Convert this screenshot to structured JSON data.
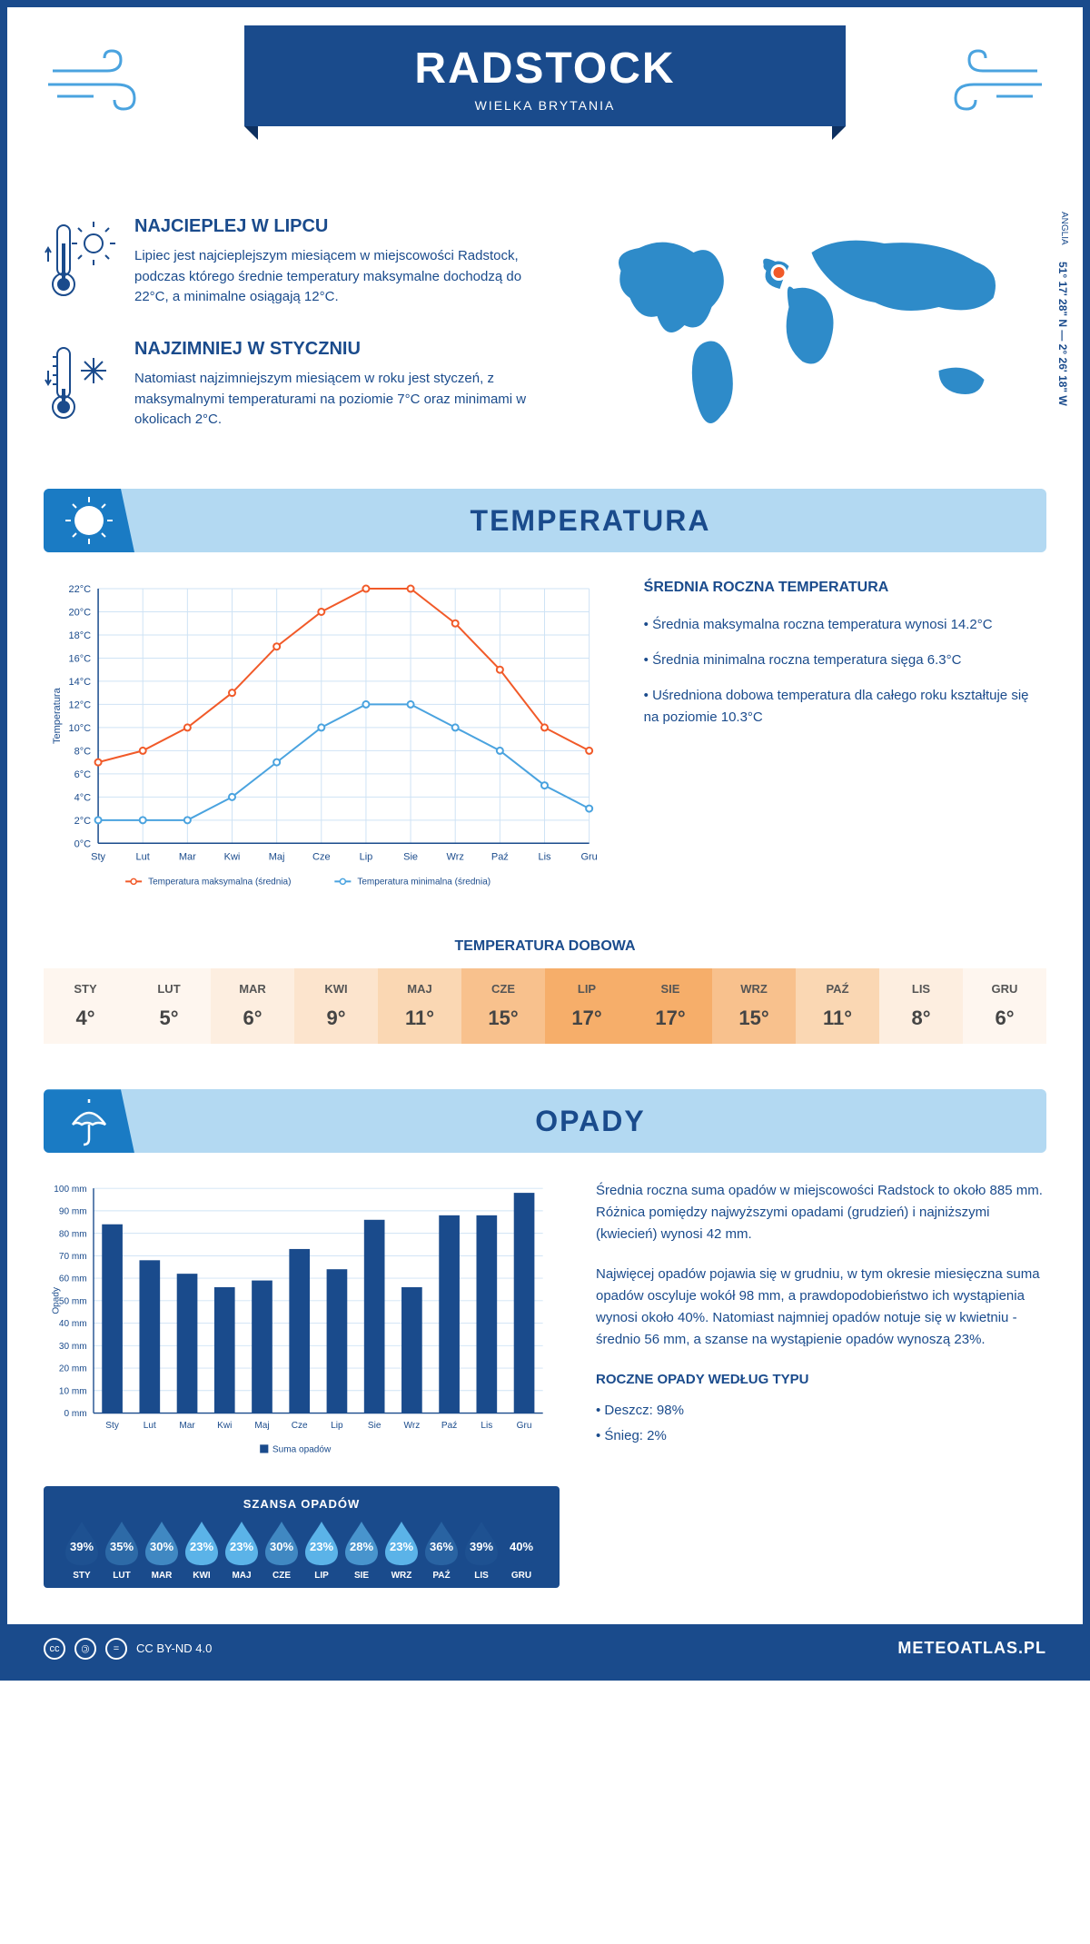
{
  "header": {
    "city": "RADSTOCK",
    "country": "WIELKA BRYTANIA",
    "coords": "51° 17' 28\" N — 2° 26' 18\" W",
    "region": "ANGLIA"
  },
  "info": {
    "warm": {
      "title": "NAJCIEPLEJ W LIPCU",
      "text": "Lipiec jest najcieplejszym miesiącem w miejscowości Radstock, podczas którego średnie temperatury maksymalne dochodzą do 22°C, a minimalne osiągają 12°C."
    },
    "cold": {
      "title": "NAJZIMNIEJ W STYCZNIU",
      "text": "Natomiast najzimniejszym miesiącem w roku jest styczeń, z maksymalnymi temperaturami na poziomie 7°C oraz minimami w okolicach 2°C."
    }
  },
  "sections": {
    "temp": "TEMPERATURA",
    "precip": "OPADY"
  },
  "months_short": [
    "Sty",
    "Lut",
    "Mar",
    "Kwi",
    "Maj",
    "Cze",
    "Lip",
    "Sie",
    "Wrz",
    "Paź",
    "Lis",
    "Gru"
  ],
  "months_upper": [
    "STY",
    "LUT",
    "MAR",
    "KWI",
    "MAJ",
    "CZE",
    "LIP",
    "SIE",
    "WRZ",
    "PAŹ",
    "LIS",
    "GRU"
  ],
  "temp_chart": {
    "type": "line",
    "ylabel": "Temperatura",
    "ylim": [
      0,
      22
    ],
    "ytick_step": 2,
    "max": [
      7,
      8,
      10,
      13,
      17,
      20,
      22,
      22,
      19,
      15,
      10,
      8
    ],
    "min": [
      2,
      2,
      2,
      4,
      7,
      10,
      12,
      12,
      10,
      8,
      5,
      3
    ],
    "max_color": "#f15a29",
    "min_color": "#4aa3df",
    "grid_color": "#cfe3f5",
    "legend": {
      "max": "Temperatura maksymalna (średnia)",
      "min": "Temperatura minimalna (średnia)"
    }
  },
  "temp_stats": {
    "title": "ŚREDNIA ROCZNA TEMPERATURA",
    "l1": "• Średnia maksymalna roczna temperatura wynosi 14.2°C",
    "l2": "• Średnia minimalna roczna temperatura sięga 6.3°C",
    "l3": "• Uśredniona dobowa temperatura dla całego roku kształtuje się na poziomie 10.3°C"
  },
  "daily": {
    "title": "TEMPERATURA DOBOWA",
    "values": [
      "4°",
      "5°",
      "6°",
      "9°",
      "11°",
      "15°",
      "17°",
      "17°",
      "15°",
      "11°",
      "8°",
      "6°"
    ],
    "colors": [
      "#fef6ef",
      "#fef6ef",
      "#fdeee0",
      "#fce4cd",
      "#fad7b3",
      "#f8c18d",
      "#f6ae6a",
      "#f6ae6a",
      "#f8c18d",
      "#fad7b3",
      "#fdeee0",
      "#fef6ef"
    ]
  },
  "precip_chart": {
    "type": "bar",
    "ylabel": "Opady",
    "ylim": [
      0,
      100
    ],
    "ytick_step": 10,
    "values": [
      84,
      68,
      62,
      56,
      59,
      73,
      64,
      86,
      56,
      88,
      88,
      98
    ],
    "bar_color": "#1a4b8c",
    "grid_color": "#cfe3f5",
    "legend": "Suma opadów"
  },
  "precip_text": {
    "p1": "Średnia roczna suma opadów w miejscowości Radstock to około 885 mm. Różnica pomiędzy najwyższymi opadami (grudzień) i najniższymi (kwiecień) wynosi 42 mm.",
    "p2": "Najwięcej opadów pojawia się w grudniu, w tym okresie miesięczna suma opadów oscyluje wokół 98 mm, a prawdopodobieństwo ich wystąpienia wynosi około 40%. Natomiast najmniej opadów notuje się w kwietniu - średnio 56 mm, a szanse na wystąpienie opadów wynoszą 23%.",
    "type_title": "ROCZNE OPADY WEDŁUG TYPU",
    "rain": "• Deszcz: 98%",
    "snow": "• Śnieg: 2%"
  },
  "chance": {
    "title": "SZANSA OPADÓW",
    "values": [
      39,
      35,
      30,
      23,
      23,
      30,
      23,
      28,
      23,
      36,
      39,
      40
    ],
    "color_scale": {
      "min": "#5bb3e8",
      "max": "#1a4b8c"
    }
  },
  "footer": {
    "license": "CC BY-ND 4.0",
    "site": "METEOATLAS.PL"
  }
}
